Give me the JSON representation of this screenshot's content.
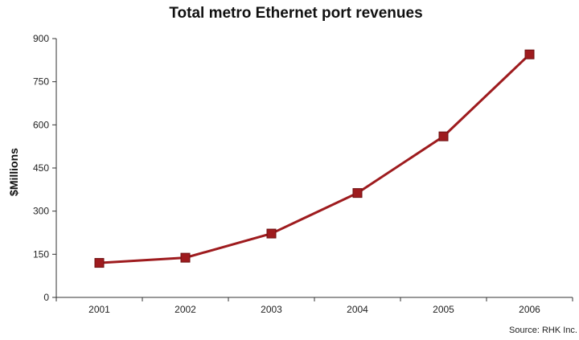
{
  "chart_data": {
    "type": "line",
    "title": "Total metro Ethernet port revenues",
    "ylabel": "$Millions",
    "xlabel": "",
    "categories": [
      "2001",
      "2002",
      "2003",
      "2004",
      "2005",
      "2006"
    ],
    "series": [
      {
        "values": [
          120,
          138,
          222,
          363,
          560,
          845
        ]
      }
    ],
    "ylim": [
      0,
      900
    ],
    "yticks": [
      0,
      150,
      300,
      450,
      600,
      750,
      900
    ],
    "grid": false,
    "legend": "none",
    "line_color": "#9e1b1e",
    "marker_color": "#9e1b1e",
    "marker": "square",
    "source": "Source: RHK Inc."
  }
}
